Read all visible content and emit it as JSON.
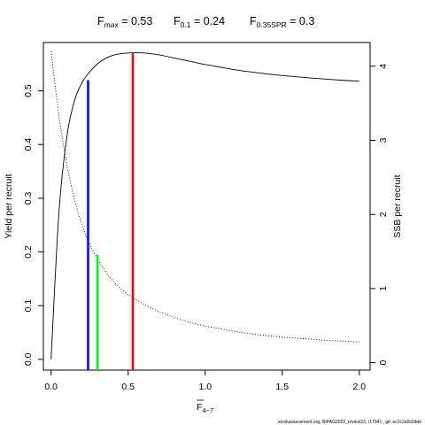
{
  "chart_data": {
    "type": "line",
    "title": {
      "fmax": {
        "label": "F",
        "sub": "max",
        "value": "0.53"
      },
      "f01": {
        "label": "F",
        "sub": "0.1",
        "value": "0.24"
      },
      "fspr": {
        "label": "F",
        "sub": "0.35SPR",
        "value": "0.3"
      }
    },
    "xlabel": {
      "main": "F",
      "sub": "4−7"
    },
    "ylabel_left": "Yield per recruit",
    "ylabel_right": "SSB per recruit",
    "xlim": [
      -0.05,
      2.07
    ],
    "ylim_left": [
      -0.02,
      0.59
    ],
    "ylim_right": [
      -0.1,
      4.32
    ],
    "x_ticks": [
      "0.0",
      "0.5",
      "1.0",
      "1.5",
      "2.0"
    ],
    "x_tick_values": [
      0,
      0.5,
      1.0,
      1.5,
      2.0
    ],
    "y_left_ticks": [
      "0.0",
      "0.1",
      "0.2",
      "0.3",
      "0.4",
      "0.5"
    ],
    "y_left_tick_values": [
      0,
      0.1,
      0.2,
      0.3,
      0.4,
      0.5
    ],
    "y_right_ticks": [
      "0",
      "1",
      "2",
      "3",
      "4"
    ],
    "y_right_tick_values": [
      0,
      1,
      2,
      3,
      4
    ],
    "series": [
      {
        "name": "Yield per recruit",
        "axis": "left",
        "style": "solid",
        "x": [
          0,
          0.05,
          0.1,
          0.15,
          0.2,
          0.25,
          0.3,
          0.35,
          0.4,
          0.45,
          0.5,
          0.55,
          0.6,
          0.7,
          0.8,
          0.9,
          1.0,
          1.1,
          1.2,
          1.3,
          1.4,
          1.5,
          1.6,
          1.7,
          1.8,
          1.9,
          2.0
        ],
        "values": [
          0,
          0.27,
          0.41,
          0.48,
          0.515,
          0.535,
          0.55,
          0.56,
          0.566,
          0.569,
          0.5705,
          0.571,
          0.5705,
          0.567,
          0.561,
          0.555,
          0.549,
          0.544,
          0.539,
          0.535,
          0.5315,
          0.5285,
          0.526,
          0.5235,
          0.5215,
          0.5195,
          0.518
        ]
      },
      {
        "name": "SSB per recruit",
        "axis": "right",
        "style": "dotted",
        "x": [
          0,
          0.05,
          0.1,
          0.15,
          0.2,
          0.25,
          0.3,
          0.35,
          0.4,
          0.45,
          0.5,
          0.55,
          0.6,
          0.7,
          0.8,
          0.9,
          1.0,
          1.1,
          1.2,
          1.3,
          1.4,
          1.5,
          1.6,
          1.7,
          1.8,
          1.9,
          2.0
        ],
        "values": [
          4.2,
          3.35,
          2.7,
          2.22,
          1.86,
          1.6,
          1.4,
          1.24,
          1.11,
          1.0,
          0.92,
          0.85,
          0.79,
          0.69,
          0.61,
          0.545,
          0.495,
          0.455,
          0.42,
          0.39,
          0.365,
          0.345,
          0.33,
          0.315,
          0.3,
          0.29,
          0.28
        ]
      }
    ],
    "reference_lines": [
      {
        "label": "F0.1",
        "x": 0.24,
        "y_top": 0.52,
        "color": "#0000ff"
      },
      {
        "label": "F0.35SPR",
        "x": 0.3,
        "y_top": 0.195,
        "color": "#00ff00"
      },
      {
        "label": "Fmax",
        "x": 0.53,
        "y_top": 0.571,
        "color": "#ff0000"
      }
    ],
    "footer": "stockassessment.org,  NIPAG2022_review23,  r17041  ,  git:  ec2c2a0c6dde",
    "grid": false,
    "legend": "none"
  }
}
